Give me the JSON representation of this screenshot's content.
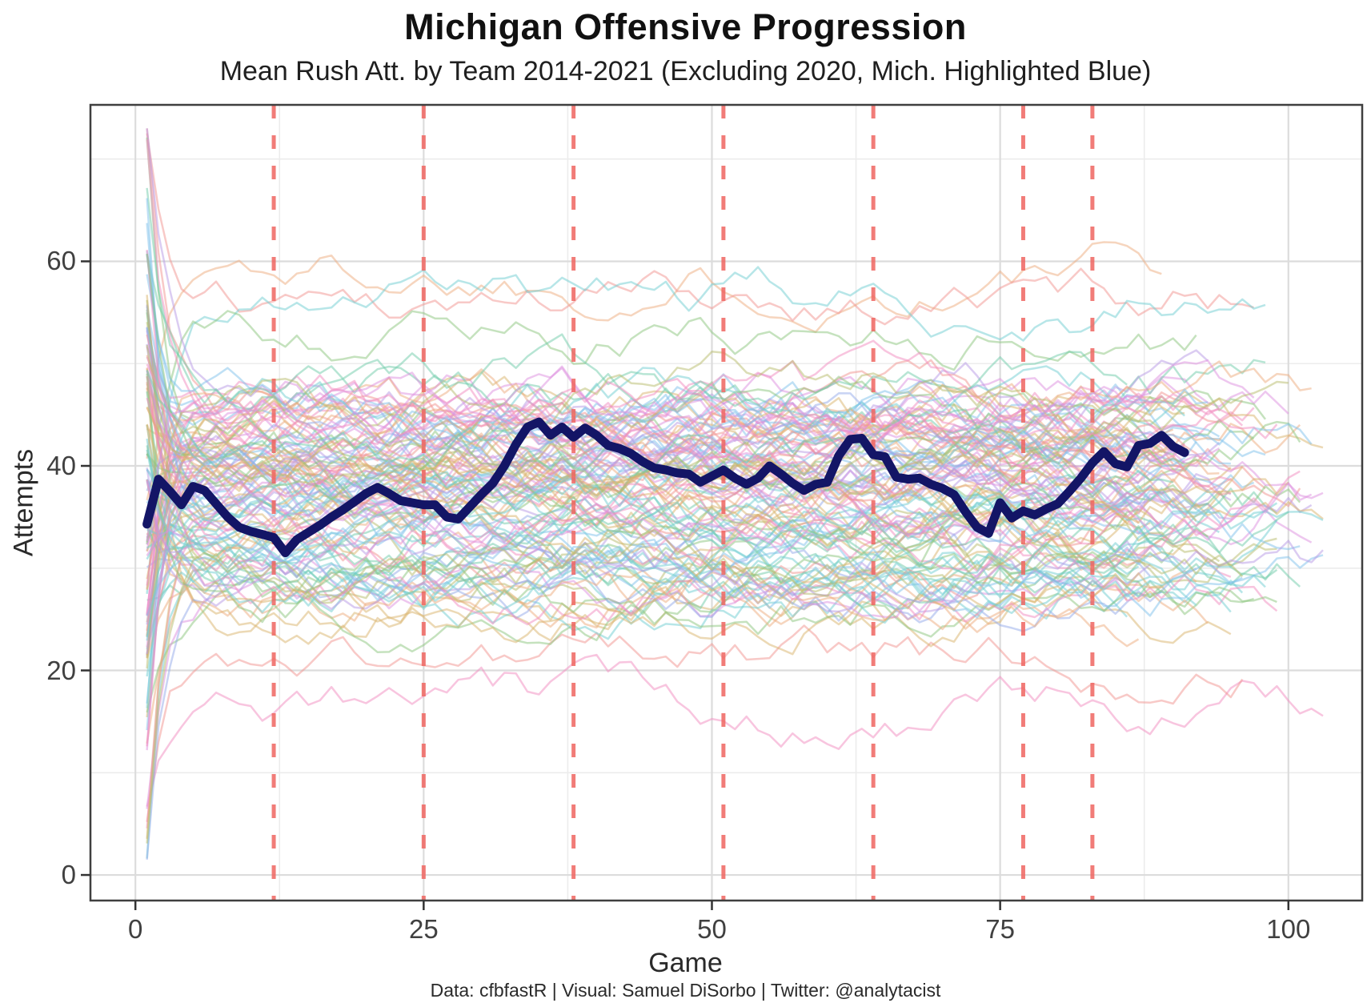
{
  "chart_data": {
    "type": "line",
    "title": "Michigan Offensive Progression",
    "subtitle": "Mean Rush Att. by Team 2014-2021 (Excluding 2020, Mich. Highlighted Blue)",
    "xlabel": "Game",
    "ylabel": "Attempts",
    "caption": "Data: cfbfastR | Visual: Samuel DiSorbo | Twitter: @analytacist",
    "x_ticks": [
      0,
      25,
      50,
      75,
      100
    ],
    "x_minor_gridlines": [
      12.5,
      37.5,
      62.5,
      87.5
    ],
    "y_ticks": [
      0,
      20,
      40,
      60
    ],
    "y_minor_gridlines": [
      10,
      30,
      50,
      70
    ],
    "xlim": [
      -3.9,
      106.4
    ],
    "ylim": [
      -2.5,
      75.3
    ],
    "grid": true,
    "legend": "none",
    "season_break_games": [
      12,
      25,
      38,
      51,
      64,
      77,
      83
    ],
    "michigan": {
      "name": "Michigan",
      "color": "#131566",
      "start_game": 1,
      "values": [
        34.3,
        38.7,
        37.5,
        36.2,
        38.0,
        37.6,
        36.3,
        35.0,
        34.0,
        33.6,
        33.3,
        33.0,
        31.5,
        32.8,
        33.5,
        34.2,
        35.0,
        35.7,
        36.5,
        37.3,
        37.9,
        37.3,
        36.6,
        36.4,
        36.2,
        36.2,
        35.0,
        34.8,
        36.0,
        37.2,
        38.3,
        40.0,
        42.1,
        43.8,
        44.3,
        43.0,
        43.8,
        42.8,
        43.7,
        43.0,
        42.0,
        41.7,
        41.2,
        40.4,
        39.8,
        39.6,
        39.3,
        39.2,
        38.4,
        39.0,
        39.6,
        38.8,
        38.2,
        38.8,
        40.0,
        39.2,
        38.3,
        37.6,
        38.2,
        38.4,
        41.0,
        42.6,
        42.7,
        41.1,
        40.9,
        38.9,
        38.7,
        38.8,
        38.2,
        37.8,
        37.2,
        35.5,
        34.0,
        33.4,
        36.4,
        34.9,
        35.6,
        35.2,
        35.8,
        36.3,
        37.5,
        38.8,
        40.3,
        41.4,
        40.2,
        39.9,
        42.0,
        42.2,
        43.0,
        41.9,
        41.3
      ]
    },
    "background_teams": {
      "description": "Approximately 128 semi-transparent FBS team lines (mean rush attempts per game), individually illegible spaghetti ensemble spanning games 1 to ~103, values mostly 20-60",
      "count": 128,
      "opacity": 0.5,
      "stroke_width": 2.5,
      "palette": [
        "#f1948f",
        "#eeab7e",
        "#d9b36b",
        "#b8bc6b",
        "#8cc57d",
        "#6fcbaa",
        "#6fcdd2",
        "#7fc2ec",
        "#93a9ea",
        "#b79ae6",
        "#dd8fe0",
        "#f18cc0"
      ],
      "specials": [
        {
          "mean": 59.0,
          "color": "#eeab7e"
        },
        {
          "mean": 57.0,
          "color": "#f1948f"
        },
        {
          "mean": 55.5,
          "color": "#6fcdd2"
        },
        {
          "mean": 53.5,
          "color": "#8cc57d"
        },
        {
          "mean": 16.5,
          "color": "#f18cc0"
        },
        {
          "mean": 21.0,
          "color": "#f1948f"
        }
      ],
      "mean_range": [
        26,
        48
      ],
      "value_range": [
        1,
        73
      ],
      "length_range": [
        86,
        103
      ],
      "start_spread": 62,
      "seed": 1337
    },
    "colors": {
      "season_break": "#ee6560",
      "grid_major": "#dcdcdc",
      "grid_minor": "#ececec",
      "panel_border": "#3f3f3f",
      "tick": "#333333",
      "tick_label": "#404040"
    }
  }
}
